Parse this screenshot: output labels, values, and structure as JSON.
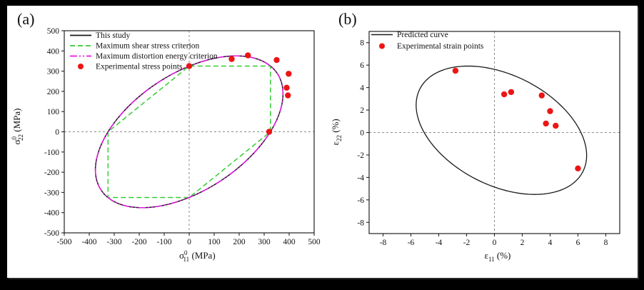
{
  "figure": {
    "background": "#000000",
    "canvas_color": "#ffffff"
  },
  "colors": {
    "axis": "#222222",
    "tick_label": "#111111",
    "zero_line_dash": "#8c8c8c",
    "black_curve": "#1a1a1a",
    "green_dashed": "#35cc35",
    "magenta_dashdot": "#e816e8",
    "red_marker": "#ec1515"
  },
  "chart_data": [
    {
      "panel_label": "(a)",
      "type": "line",
      "title": "",
      "xlabel": {
        "symbol": "σ",
        "sup": "0",
        "sub": "11",
        "unit": "(MPa)"
      },
      "ylabel": {
        "symbol": "σ",
        "sup": "0",
        "sub": "22",
        "unit": "(MPa)"
      },
      "xlim": [
        -500,
        500
      ],
      "ylim": [
        -500,
        500
      ],
      "xticks": [
        -500,
        -400,
        -300,
        -200,
        -100,
        0,
        100,
        200,
        300,
        400,
        500
      ],
      "yticks": [
        -500,
        -400,
        -300,
        -200,
        -100,
        0,
        100,
        200,
        300,
        400,
        500
      ],
      "zero_crosshair": true,
      "grid": false,
      "legend_position": "top-left",
      "series": [
        {
          "name": "This study",
          "kind": "curve",
          "style": "solid",
          "color": "#1a1a1a",
          "width": 1.5,
          "ellipse": {
            "cx": 0,
            "cy": 0,
            "a": 460,
            "b": 265,
            "rotation_deg": 45
          }
        },
        {
          "name": "Maximum shear stress criterion",
          "kind": "polygon",
          "style": "dashed",
          "color": "#35cc35",
          "width": 1.5,
          "vertices": [
            [
              325,
              0
            ],
            [
              325,
              325
            ],
            [
              0,
              325
            ],
            [
              -325,
              0
            ],
            [
              -325,
              -325
            ],
            [
              0,
              -325
            ]
          ]
        },
        {
          "name": "Maximum distortion energy criterion",
          "kind": "curve",
          "style": "dashdotdot",
          "color": "#e816e8",
          "width": 1.5,
          "ellipse": {
            "cx": 0,
            "cy": 0,
            "a": 460,
            "b": 265,
            "rotation_deg": 45
          }
        },
        {
          "name": "Experimental stress points",
          "kind": "scatter",
          "color": "#ec1515",
          "marker_radius": 4.2,
          "points": [
            [
              0,
              325
            ],
            [
              170,
              360
            ],
            [
              235,
              378
            ],
            [
              350,
              355
            ],
            [
              398,
              287
            ],
            [
              390,
              218
            ],
            [
              395,
              180
            ],
            [
              320,
              0
            ]
          ]
        }
      ]
    },
    {
      "panel_label": "(b)",
      "type": "line",
      "title": "",
      "xlabel": {
        "symbol": "ε",
        "sub": "11",
        "unit": "(%)"
      },
      "ylabel": {
        "symbol": "ε",
        "sub": "22",
        "unit": "(%)"
      },
      "xlim": [
        -9,
        9
      ],
      "ylim": [
        -9,
        9
      ],
      "xticks": [
        -8,
        -6,
        -4,
        -2,
        0,
        2,
        4,
        6,
        8
      ],
      "yticks": [
        -8,
        -6,
        -4,
        -2,
        0,
        2,
        4,
        6,
        8
      ],
      "zero_crosshair": true,
      "grid": false,
      "legend_position": "top-left",
      "series": [
        {
          "name": "Predicted curve",
          "kind": "curve",
          "style": "solid",
          "color": "#1a1a1a",
          "width": 1.3,
          "ellipse": {
            "cx": 0.5,
            "cy": 0.2,
            "a": 7.0,
            "b": 4.6,
            "rotation_deg": -40
          }
        },
        {
          "name": "Experimental strain points",
          "kind": "scatter",
          "color": "#ec1515",
          "marker_radius": 4.2,
          "points": [
            [
              -2.8,
              5.5
            ],
            [
              0.7,
              3.4
            ],
            [
              1.2,
              3.6
            ],
            [
              3.4,
              3.3
            ],
            [
              4.0,
              1.9
            ],
            [
              3.7,
              0.8
            ],
            [
              4.4,
              0.6
            ],
            [
              6.0,
              -3.2
            ]
          ]
        }
      ]
    }
  ]
}
